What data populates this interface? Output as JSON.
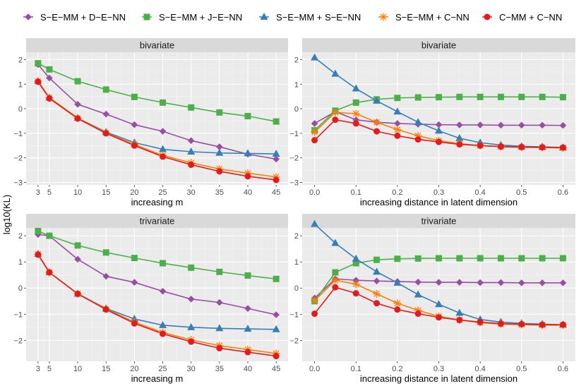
{
  "y_axis_label": "log10(KL)",
  "legend": [
    {
      "name": "S−E−MM + D−E−NN",
      "color": "#984EA3",
      "shape": "diamond"
    },
    {
      "name": "S−E−MM + J−E−NN",
      "color": "#4DAF4A",
      "shape": "square"
    },
    {
      "name": "S−E−MM + S−E−NN",
      "color": "#377EB8",
      "shape": "triangle"
    },
    {
      "name": "S−E−MM + C−NN",
      "color": "#FF7F00",
      "shape": "asterisk"
    },
    {
      "name": "C−MM + C−NN",
      "color": "#E41A1C",
      "shape": "circle"
    }
  ],
  "chart_data": [
    {
      "type": "line",
      "title": "bivariate",
      "xlabel": "increasing m",
      "ylabel": "log10(KL)",
      "x": [
        3,
        5,
        10,
        15,
        20,
        25,
        30,
        35,
        40,
        45
      ],
      "xticks": [
        3,
        5,
        10,
        15,
        20,
        25,
        30,
        35,
        40,
        45
      ],
      "xlim": [
        0.9,
        47.1
      ],
      "ylim": [
        -3.1,
        2.3
      ],
      "yticks": [
        -3,
        -2,
        -1,
        0,
        1,
        2
      ],
      "series": [
        {
          "name": "S−E−MM + D−E−NN",
          "values": [
            1.8,
            1.25,
            0.18,
            -0.22,
            -0.65,
            -0.92,
            -1.3,
            -1.55,
            -1.85,
            -2.05
          ]
        },
        {
          "name": "S−E−MM + J−E−NN",
          "values": [
            1.85,
            1.6,
            1.12,
            0.78,
            0.48,
            0.25,
            0.05,
            -0.15,
            -0.3,
            -0.52
          ]
        },
        {
          "name": "S−E−MM + S−E−NN",
          "values": [
            1.12,
            0.45,
            -0.38,
            -0.95,
            -1.38,
            -1.65,
            -1.75,
            -1.8,
            -1.82,
            -1.84
          ]
        },
        {
          "name": "S−E−MM + C−NN",
          "values": [
            1.12,
            0.45,
            -0.38,
            -0.98,
            -1.45,
            -1.9,
            -2.2,
            -2.45,
            -2.62,
            -2.78
          ]
        },
        {
          "name": "C−MM + C−NN",
          "values": [
            1.1,
            0.42,
            -0.4,
            -1.0,
            -1.5,
            -1.95,
            -2.28,
            -2.55,
            -2.75,
            -2.9
          ]
        }
      ]
    },
    {
      "type": "line",
      "title": "bivariate",
      "xlabel": "increasing distance in latent dimension",
      "ylabel": "",
      "x": [
        0,
        0.05,
        0.1,
        0.15,
        0.2,
        0.25,
        0.3,
        0.35,
        0.4,
        0.45,
        0.5,
        0.55,
        0.6
      ],
      "xticks": [
        0.0,
        0.1,
        0.2,
        0.3,
        0.4,
        0.5,
        0.6
      ],
      "xtick_labels": [
        "0.0",
        "0.1",
        "0.2",
        "0.3",
        "0.4",
        "0.5",
        "0.6"
      ],
      "xlim": [
        -0.03,
        0.63
      ],
      "ylim": [
        -3.1,
        2.3
      ],
      "yticks": [
        -3,
        -2,
        -1,
        0,
        1,
        2
      ],
      "series": [
        {
          "name": "S−E−MM + D−E−NN",
          "values": [
            -0.6,
            -0.12,
            -0.45,
            -0.55,
            -0.6,
            -0.63,
            -0.65,
            -0.66,
            -0.66,
            -0.67,
            -0.67,
            -0.67,
            -0.68
          ]
        },
        {
          "name": "S−E−MM + J−E−NN",
          "values": [
            -0.88,
            -0.08,
            0.25,
            0.38,
            0.44,
            0.46,
            0.47,
            0.48,
            0.48,
            0.48,
            0.48,
            0.48,
            0.47
          ]
        },
        {
          "name": "S−E−MM + S−E−NN",
          "values": [
            2.08,
            1.42,
            0.82,
            0.32,
            -0.12,
            -0.55,
            -0.9,
            -1.2,
            -1.38,
            -1.48,
            -1.53,
            -1.55,
            -1.58
          ]
        },
        {
          "name": "S−E−MM + C−NN",
          "values": [
            -0.95,
            -0.15,
            -0.2,
            -0.55,
            -0.85,
            -1.1,
            -1.3,
            -1.42,
            -1.5,
            -1.55,
            -1.57,
            -1.58,
            -1.6
          ]
        },
        {
          "name": "C−MM + C−NN",
          "values": [
            -1.28,
            -0.45,
            -0.6,
            -0.92,
            -1.1,
            -1.25,
            -1.35,
            -1.45,
            -1.5,
            -1.54,
            -1.56,
            -1.57,
            -1.58
          ]
        }
      ]
    },
    {
      "type": "line",
      "title": "trivariate",
      "xlabel": "increasing m",
      "ylabel": "log10(KL)",
      "x": [
        3,
        5,
        10,
        15,
        20,
        25,
        30,
        35,
        40,
        45
      ],
      "xticks": [
        3,
        5,
        10,
        15,
        20,
        25,
        30,
        35,
        40,
        45
      ],
      "xlim": [
        0.9,
        47.1
      ],
      "ylim": [
        -2.8,
        2.3
      ],
      "yticks": [
        -2,
        -1,
        0,
        1,
        2
      ],
      "series": [
        {
          "name": "S−E−MM + D−E−NN",
          "values": [
            2.05,
            2.0,
            1.1,
            0.45,
            0.22,
            -0.12,
            -0.42,
            -0.55,
            -0.78,
            -1.02
          ]
        },
        {
          "name": "S−E−MM + J−E−NN",
          "values": [
            2.18,
            2.0,
            1.63,
            1.36,
            1.15,
            0.95,
            0.78,
            0.62,
            0.48,
            0.35
          ]
        },
        {
          "name": "S−E−MM + S−E−NN",
          "values": [
            1.3,
            0.6,
            -0.22,
            -0.78,
            -1.18,
            -1.42,
            -1.5,
            -1.54,
            -1.56,
            -1.58
          ]
        },
        {
          "name": "S−E−MM + C−NN",
          "values": [
            1.3,
            0.6,
            -0.22,
            -0.8,
            -1.3,
            -1.7,
            -1.98,
            -2.2,
            -2.35,
            -2.5
          ]
        },
        {
          "name": "C−MM + C−NN",
          "values": [
            1.28,
            0.6,
            -0.22,
            -0.82,
            -1.35,
            -1.75,
            -2.05,
            -2.3,
            -2.45,
            -2.6
          ]
        }
      ]
    },
    {
      "type": "line",
      "title": "trivariate",
      "xlabel": "increasing distance in latent dimension",
      "ylabel": "",
      "x": [
        0,
        0.05,
        0.1,
        0.15,
        0.2,
        0.25,
        0.3,
        0.35,
        0.4,
        0.45,
        0.5,
        0.55,
        0.6
      ],
      "xticks": [
        0.0,
        0.1,
        0.2,
        0.3,
        0.4,
        0.5,
        0.6
      ],
      "xtick_labels": [
        "0.0",
        "0.1",
        "0.2",
        "0.3",
        "0.4",
        "0.5",
        "0.6"
      ],
      "xlim": [
        -0.03,
        0.63
      ],
      "ylim": [
        -2.8,
        2.3
      ],
      "yticks": [
        -2,
        -1,
        0,
        1,
        2
      ],
      "series": [
        {
          "name": "S−E−MM + D−E−NN",
          "values": [
            -0.38,
            0.35,
            0.3,
            0.27,
            0.25,
            0.23,
            0.22,
            0.22,
            0.21,
            0.21,
            0.2,
            0.2,
            0.2
          ]
        },
        {
          "name": "S−E−MM + J−E−NN",
          "values": [
            -0.5,
            0.6,
            0.95,
            1.08,
            1.12,
            1.13,
            1.14,
            1.14,
            1.14,
            1.14,
            1.14,
            1.14,
            1.14
          ]
        },
        {
          "name": "S−E−MM + S−E−NN",
          "values": [
            2.45,
            1.72,
            1.12,
            0.62,
            0.2,
            -0.25,
            -0.62,
            -0.95,
            -1.2,
            -1.3,
            -1.35,
            -1.38,
            -1.4
          ]
        },
        {
          "name": "S−E−MM + C−NN",
          "values": [
            -0.48,
            0.3,
            0.15,
            -0.22,
            -0.58,
            -0.85,
            -1.08,
            -1.22,
            -1.32,
            -1.38,
            -1.4,
            -1.42,
            -1.42
          ]
        },
        {
          "name": "C−MM + C−NN",
          "values": [
            -0.98,
            0.03,
            -0.2,
            -0.58,
            -0.82,
            -0.98,
            -1.12,
            -1.22,
            -1.3,
            -1.36,
            -1.38,
            -1.4,
            -1.4
          ]
        }
      ]
    }
  ]
}
